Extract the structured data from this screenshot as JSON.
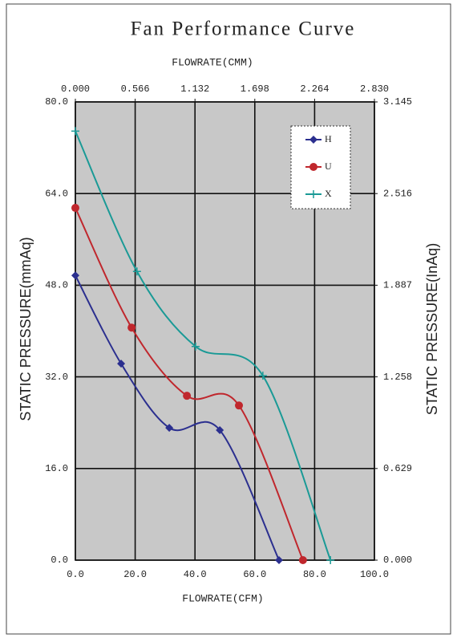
{
  "chart_data": {
    "type": "line",
    "title": "Fan Performance Curve",
    "xlabel": "FLOWRATE(CFM)",
    "x2label": "FLOWRATE(CMM)",
    "ylabel": "STATIC PRESSURE(mmAq)",
    "y2label": "STATIC PRESSURE(InAq)",
    "xlim": [
      0,
      100
    ],
    "xticks": [
      {
        "value": 0,
        "label": "0.0"
      },
      {
        "value": 20,
        "label": "20.0"
      },
      {
        "value": 40,
        "label": "40.0"
      },
      {
        "value": 60,
        "label": "60.0"
      },
      {
        "value": 80,
        "label": "80.0"
      },
      {
        "value": 100,
        "label": "100.0"
      }
    ],
    "x2lim": [
      0,
      2.83
    ],
    "x2ticks": [
      {
        "value": 0,
        "label": "0.000"
      },
      0.566,
      1.132,
      1.698,
      2.264,
      {
        "value": 2.83,
        "label": "2.830"
      }
    ],
    "ylim": [
      0,
      80
    ],
    "yticks": [
      {
        "value": 0,
        "label": "0.0"
      },
      {
        "value": 16,
        "label": "16.0"
      },
      {
        "value": 32,
        "label": "32.0"
      },
      {
        "value": 48,
        "label": "48.0"
      },
      {
        "value": 64,
        "label": "64.0"
      },
      {
        "value": 80,
        "label": "80.0"
      }
    ],
    "y2lim": [
      0,
      3.145
    ],
    "y2ticks": [
      {
        "value": 0,
        "label": "0.000"
      },
      0.629,
      1.258,
      1.887,
      2.516,
      3.145
    ],
    "grid": true,
    "legend": "upper right",
    "series": [
      {
        "name": "H",
        "color": "#2b2f8f",
        "marker": "diamond",
        "x": [
          0,
          15.3,
          31.4,
          48.3,
          68.1
        ],
        "values": [
          49.7,
          34.3,
          23.1,
          22.7,
          0
        ]
      },
      {
        "name": "U",
        "color": "#c0272d",
        "marker": "circle",
        "x": [
          0,
          18.8,
          37.3,
          54.7,
          76.1
        ],
        "values": [
          61.5,
          40.6,
          28.7,
          27,
          0
        ]
      },
      {
        "name": "X",
        "color": "#1a9a96",
        "marker": "plus",
        "x": [
          0,
          20.6,
          40.2,
          62.7,
          85.3
        ],
        "values": [
          74.9,
          50.4,
          37.3,
          32.2,
          0
        ]
      }
    ]
  }
}
